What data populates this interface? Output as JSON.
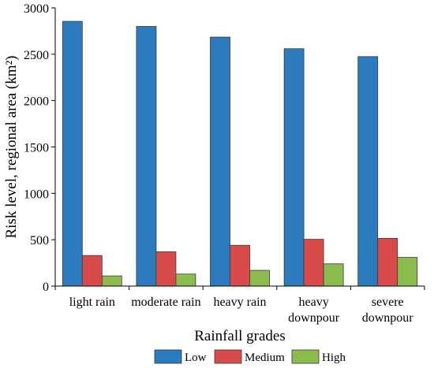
{
  "chart_data": {
    "type": "bar",
    "title": "",
    "xlabel": "Rainfall grades",
    "ylabel": "Risk level, regional area (km²)",
    "categories": [
      [
        "light rain"
      ],
      [
        "moderate rain"
      ],
      [
        "heavy rain"
      ],
      [
        "heavy",
        "downpour"
      ],
      [
        "severe",
        "downpour"
      ]
    ],
    "series": [
      {
        "name": "Low",
        "color": "#2b7bbd",
        "values": [
          2855,
          2800,
          2685,
          2560,
          2475
        ]
      },
      {
        "name": "Medium",
        "color": "#d94b4b",
        "values": [
          330,
          370,
          440,
          505,
          515
        ]
      },
      {
        "name": "High",
        "color": "#8cbb50",
        "values": [
          110,
          130,
          170,
          240,
          310
        ]
      }
    ],
    "ylim": [
      0,
      3000
    ],
    "yticks": [
      0,
      500,
      1000,
      1500,
      2000,
      2500,
      3000
    ],
    "grid": false,
    "legend_position": "bottom"
  }
}
